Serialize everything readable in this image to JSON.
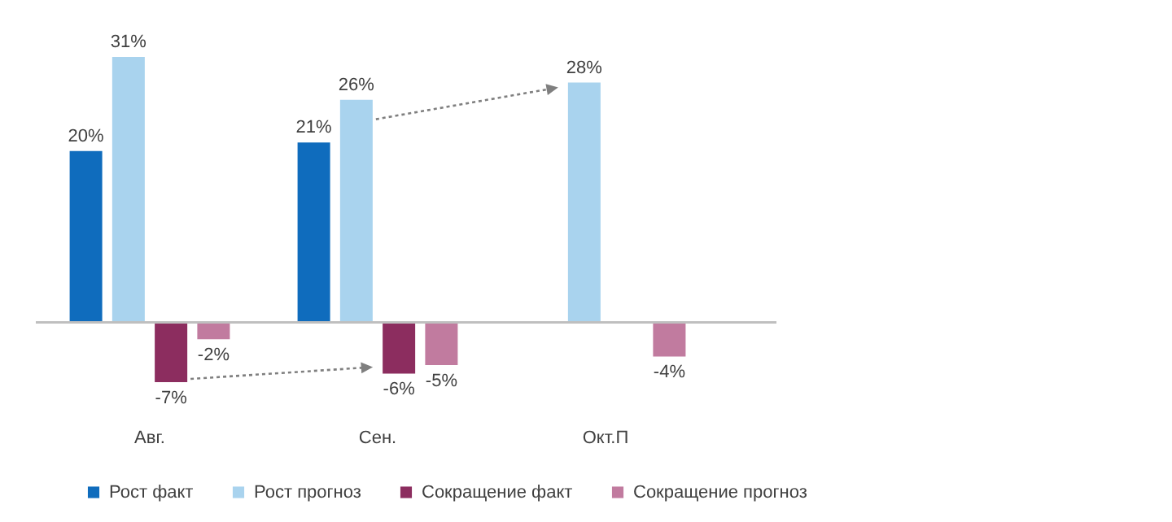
{
  "chart_data": {
    "type": "bar",
    "categories": [
      "Авг.",
      "Сен.",
      "Окт.П"
    ],
    "series": [
      {
        "name": "Рост факт",
        "color": "#0f6cbd",
        "values": [
          20,
          21,
          null
        ],
        "value_labels": [
          "20%",
          "21%",
          null
        ]
      },
      {
        "name": "Рост прогноз",
        "color": "#a9d3ee",
        "values": [
          31,
          26,
          28
        ],
        "value_labels": [
          "31%",
          "26%",
          "28%"
        ]
      },
      {
        "name": "Сокращение факт",
        "color": "#8c2d5f",
        "values": [
          -7,
          -6,
          null
        ],
        "value_labels": [
          "-7%",
          "-6%",
          null
        ]
      },
      {
        "name": "Сокращение прогноз",
        "color": "#c17b9f",
        "values": [
          -2,
          -5,
          -4
        ],
        "value_labels": [
          "-2%",
          "-5%",
          "-4%"
        ]
      }
    ],
    "legend": "bottom"
  }
}
